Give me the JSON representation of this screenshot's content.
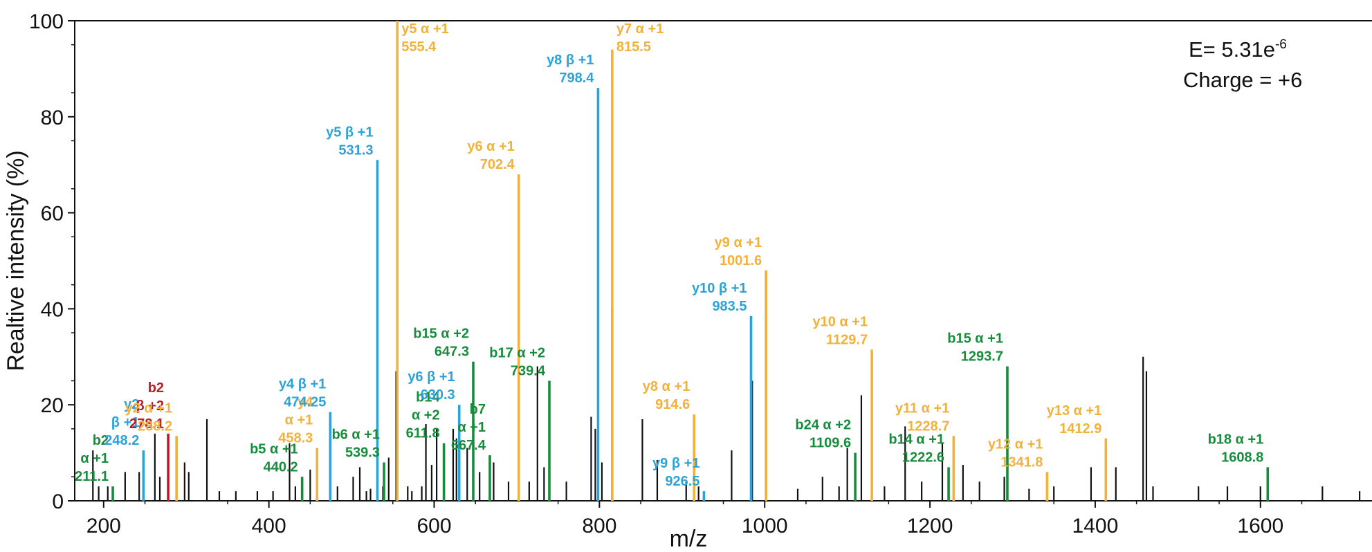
{
  "colors": {
    "unassigned": "#111111",
    "alpha_y": "#f2b13b",
    "beta_y": "#2ba3d8",
    "b_ions": "#178c3b",
    "beta_b": "#b3202c"
  },
  "chart_data": {
    "type": "bar",
    "xlabel": "m/z",
    "ylabel": "Realtive intensity (%)",
    "xlim": [
      165,
      1735
    ],
    "ylim": [
      0,
      100
    ],
    "xticks": [
      200,
      400,
      600,
      800,
      1000,
      1200,
      1400,
      1600
    ],
    "yticks": [
      0,
      20,
      40,
      60,
      80,
      100
    ],
    "stats": {
      "evalue_prefix": "E= 5.31e",
      "evalue_exp": "-6",
      "charge": "Charge = +6"
    },
    "series": [
      {
        "key": "unassigned",
        "peaks": [
          [
            187,
            10.5
          ],
          [
            194,
            3
          ],
          [
            205,
            3
          ],
          [
            226,
            6
          ],
          [
            243,
            6
          ],
          [
            262,
            14
          ],
          [
            268,
            5
          ],
          [
            298,
            8
          ],
          [
            303,
            6
          ],
          [
            325,
            17
          ],
          [
            340,
            2
          ],
          [
            360,
            2
          ],
          [
            386,
            2
          ],
          [
            405,
            2
          ],
          [
            425,
            12
          ],
          [
            432,
            3
          ],
          [
            450,
            6.5
          ],
          [
            483,
            3
          ],
          [
            502,
            5
          ],
          [
            510,
            7
          ],
          [
            518,
            2
          ],
          [
            523,
            2.5
          ],
          [
            538,
            3
          ],
          [
            545,
            9
          ],
          [
            554,
            27
          ],
          [
            568,
            3
          ],
          [
            573,
            2
          ],
          [
            585,
            3
          ],
          [
            590,
            16
          ],
          [
            597,
            7.5
          ],
          [
            603,
            15
          ],
          [
            623,
            15
          ],
          [
            627,
            13
          ],
          [
            640,
            11
          ],
          [
            655,
            6
          ],
          [
            672,
            8
          ],
          [
            690,
            4
          ],
          [
            715,
            4
          ],
          [
            725,
            28
          ],
          [
            733,
            7
          ],
          [
            760,
            4
          ],
          [
            790,
            17.5
          ],
          [
            795,
            15
          ],
          [
            803,
            8
          ],
          [
            815,
            40
          ],
          [
            852,
            17
          ],
          [
            870,
            8.5
          ],
          [
            905,
            4
          ],
          [
            920,
            3
          ],
          [
            960,
            10.5
          ],
          [
            985,
            25
          ],
          [
            1040,
            2.5
          ],
          [
            1070,
            5
          ],
          [
            1090,
            3
          ],
          [
            1100,
            11
          ],
          [
            1117,
            22
          ],
          [
            1145,
            3
          ],
          [
            1170,
            15.5
          ],
          [
            1190,
            4
          ],
          [
            1215,
            12
          ],
          [
            1240,
            7.5
          ],
          [
            1260,
            4
          ],
          [
            1290,
            5
          ],
          [
            1320,
            2.5
          ],
          [
            1350,
            3
          ],
          [
            1395,
            7
          ],
          [
            1425,
            7
          ],
          [
            1458,
            30
          ],
          [
            1462,
            27
          ],
          [
            1470,
            3
          ],
          [
            1525,
            3
          ],
          [
            1560,
            3
          ],
          [
            1600,
            3
          ],
          [
            1675,
            3
          ],
          [
            1720,
            2
          ]
        ]
      },
      {
        "key": "alpha_y",
        "peaks": [
          [
            288.2,
            13.5
          ],
          [
            458.3,
            11
          ],
          [
            555.4,
            100
          ],
          [
            702.4,
            68
          ],
          [
            815.5,
            94
          ],
          [
            914.6,
            18
          ],
          [
            1001.6,
            48
          ],
          [
            1129.7,
            31.5
          ],
          [
            1228.7,
            13.5
          ],
          [
            1341.8,
            6
          ],
          [
            1412.9,
            13
          ]
        ]
      },
      {
        "key": "beta_y",
        "peaks": [
          [
            248.2,
            10.5
          ],
          [
            474.25,
            18.5
          ],
          [
            531.3,
            71
          ],
          [
            630.3,
            20
          ],
          [
            798.4,
            86
          ],
          [
            926.5,
            2
          ],
          [
            983.5,
            38.5
          ]
        ]
      },
      {
        "key": "b_ions",
        "peaks": [
          [
            211.1,
            3
          ],
          [
            440.2,
            5
          ],
          [
            539.3,
            8
          ],
          [
            611.8,
            12
          ],
          [
            647.3,
            29
          ],
          [
            667.4,
            9.5
          ],
          [
            739.4,
            25
          ],
          [
            1109.6,
            10
          ],
          [
            1222.6,
            7
          ],
          [
            1293.7,
            28
          ],
          [
            1608.8,
            7
          ]
        ]
      },
      {
        "key": "beta_b",
        "peaks": [
          [
            278.1,
            14
          ]
        ]
      }
    ],
    "annotations": [
      {
        "key": "b_ions",
        "x": 211.1,
        "lines": [
          "b2",
          "α +1",
          "211.1"
        ]
      },
      {
        "key": "beta_y",
        "x": 248.2,
        "lines": [
          "y2",
          "β +1",
          "248.2"
        ]
      },
      {
        "key": "beta_b",
        "x": 278.1,
        "lines": [
          "b2",
          "β +2",
          "278.1"
        ]
      },
      {
        "key": "alpha_y",
        "x": 288.2,
        "lines": [
          "y2 α +1",
          "288.2"
        ]
      },
      {
        "key": "b_ions",
        "x": 440.2,
        "lines": [
          "b5 α +1",
          "440.2"
        ]
      },
      {
        "key": "alpha_y",
        "x": 458.3,
        "lines": [
          "y4",
          "α +1",
          "458.3"
        ]
      },
      {
        "key": "beta_y",
        "x": 474.25,
        "lines": [
          "y4 β +1",
          "474.25"
        ]
      },
      {
        "key": "b_ions",
        "x": 539.3,
        "lines": [
          "b6 α +1",
          "539.3"
        ]
      },
      {
        "key": "beta_y",
        "x": 531.3,
        "lines": [
          "y5 β +1",
          "531.3"
        ]
      },
      {
        "key": "alpha_y",
        "x": 555.4,
        "lines": [
          "y5 α +1",
          "555.4"
        ]
      },
      {
        "key": "b_ions",
        "x": 611.8,
        "lines": [
          "b14",
          "α +2",
          "611.8"
        ]
      },
      {
        "key": "beta_y",
        "x": 630.3,
        "lines": [
          "y6 β +1",
          "630.3"
        ]
      },
      {
        "key": "b_ions",
        "x": 647.3,
        "lines": [
          "b15 α +2",
          "647.3"
        ]
      },
      {
        "key": "b_ions",
        "x": 667.4,
        "lines": [
          "b7",
          "α +1",
          "667.4"
        ]
      },
      {
        "key": "alpha_y",
        "x": 702.4,
        "lines": [
          "y6 α +1",
          "702.4"
        ]
      },
      {
        "key": "b_ions",
        "x": 739.4,
        "lines": [
          "b17 α +2",
          "739.4"
        ]
      },
      {
        "key": "beta_y",
        "x": 798.4,
        "lines": [
          "y8 β +1",
          "798.4"
        ]
      },
      {
        "key": "alpha_y",
        "x": 815.5,
        "lines": [
          "y7 α +1",
          "815.5"
        ]
      },
      {
        "key": "alpha_y",
        "x": 914.6,
        "lines": [
          "y8 α +1",
          "914.6"
        ]
      },
      {
        "key": "beta_y",
        "x": 926.5,
        "lines": [
          "y9 β +1",
          "926.5"
        ]
      },
      {
        "key": "beta_y",
        "x": 983.5,
        "lines": [
          "y10 β +1",
          "983.5"
        ]
      },
      {
        "key": "alpha_y",
        "x": 1001.6,
        "lines": [
          "y9 α +1",
          "1001.6"
        ]
      },
      {
        "key": "b_ions",
        "x": 1109.6,
        "lines": [
          "b24 α +2",
          "1109.6"
        ]
      },
      {
        "key": "alpha_y",
        "x": 1129.7,
        "lines": [
          "y10 α +1",
          "1129.7"
        ]
      },
      {
        "key": "b_ions",
        "x": 1222.6,
        "lines": [
          "b14 α +1",
          "1222.6"
        ]
      },
      {
        "key": "alpha_y",
        "x": 1228.7,
        "lines": [
          "y11 α +1",
          "1228.7"
        ]
      },
      {
        "key": "b_ions",
        "x": 1293.7,
        "lines": [
          "b15 α +1",
          "1293.7"
        ]
      },
      {
        "key": "alpha_y",
        "x": 1341.8,
        "lines": [
          "y12 α +1",
          "1341.8"
        ]
      },
      {
        "key": "alpha_y",
        "x": 1412.9,
        "lines": [
          "y13 α +1",
          "1412.9"
        ]
      },
      {
        "key": "b_ions",
        "x": 1608.8,
        "lines": [
          "b18 α +1",
          "1608.8"
        ]
      }
    ]
  }
}
